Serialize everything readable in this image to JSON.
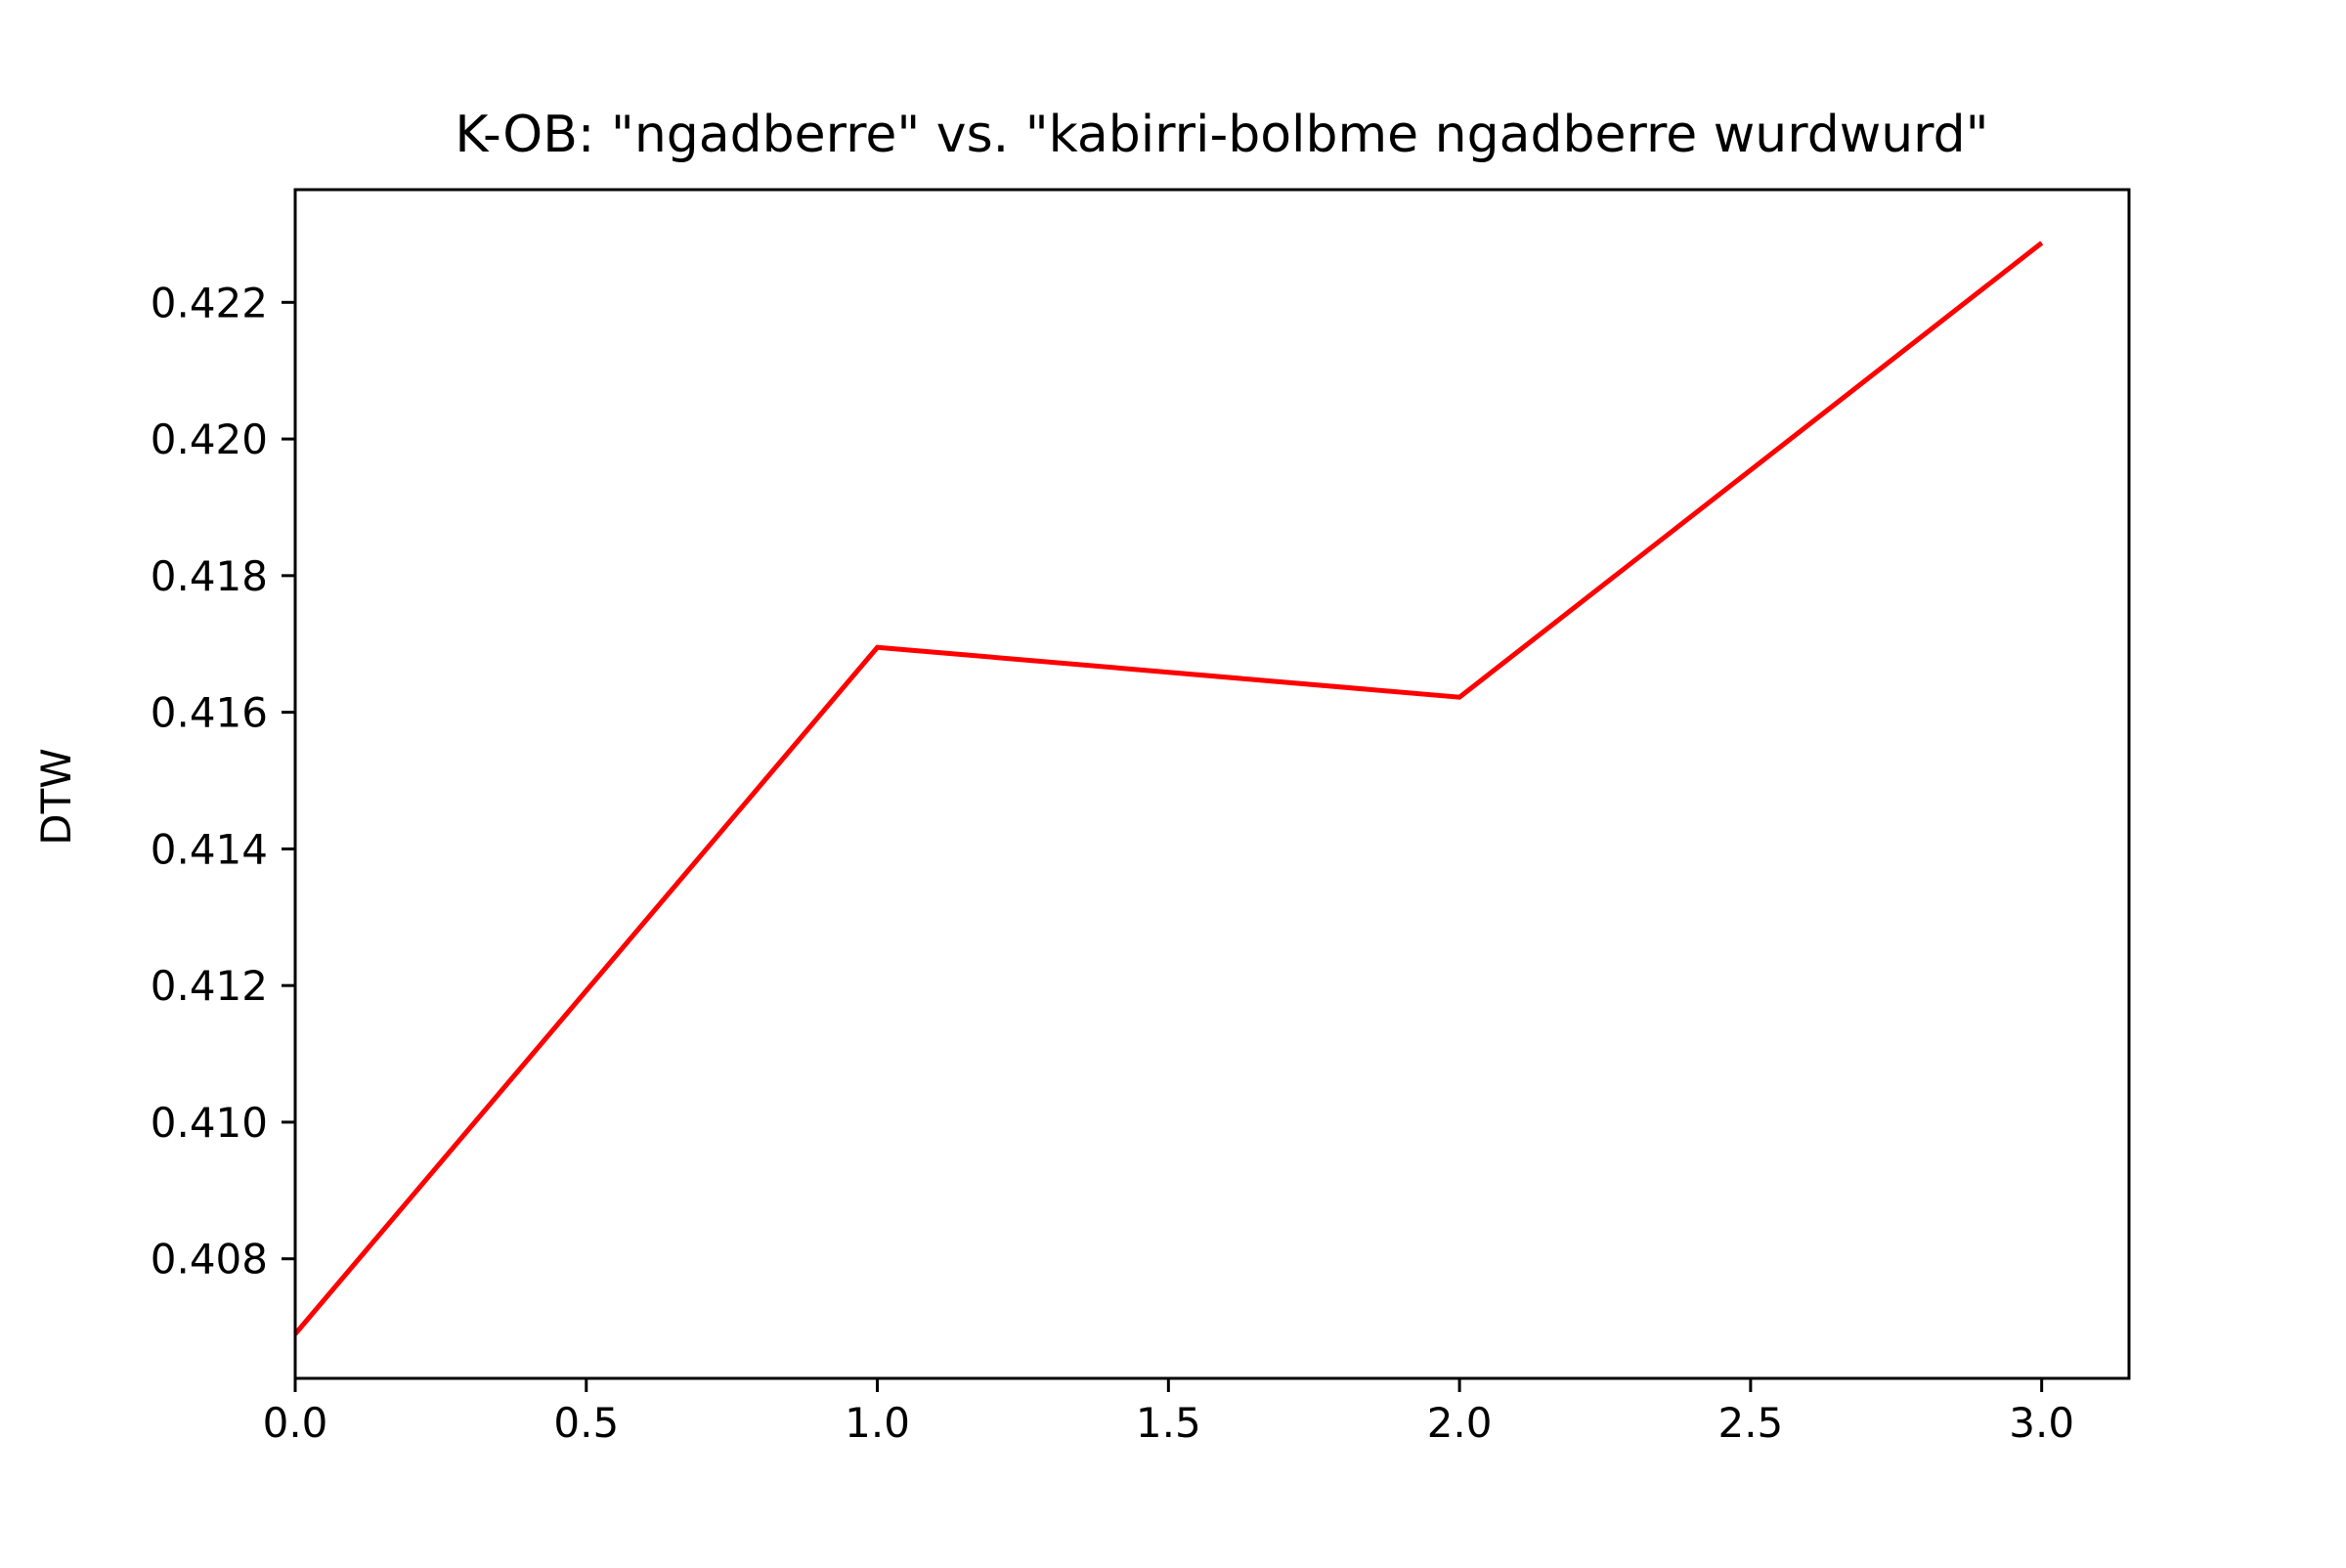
{
  "chart_data": {
    "type": "line",
    "title": "K-OB: \"ngadberre\" vs. \"kabirri-bolbme ngadberre wurdwurd\"",
    "xlabel": "",
    "ylabel": "DTW",
    "x": [
      0,
      1,
      2,
      3
    ],
    "series": [
      {
        "values": [
          0.4069,
          0.41695,
          0.41622,
          0.42287
        ],
        "color": "#ff0000"
      }
    ],
    "xlim": [
      0,
      3.15
    ],
    "ylim": [
      0.40625,
      0.42365
    ],
    "xticks": [
      0,
      0.5,
      1,
      1.5,
      2,
      2.5,
      3
    ],
    "xtick_labels": [
      "0.0",
      "0.5",
      "1.0",
      "1.5",
      "2.0",
      "2.5",
      "3.0"
    ],
    "yticks": [
      0.408,
      0.41,
      0.412,
      0.414,
      0.416,
      0.418,
      0.42,
      0.422
    ],
    "ytick_labels": [
      "0.408",
      "0.410",
      "0.412",
      "0.414",
      "0.416",
      "0.418",
      "0.420",
      "0.422"
    ],
    "grid": false,
    "legend": "none"
  }
}
